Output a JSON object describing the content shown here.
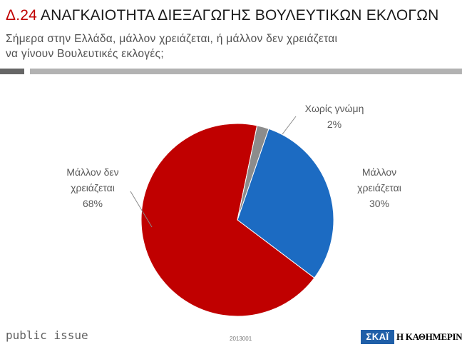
{
  "header": {
    "code": "Δ.24",
    "title": "ΑΝΑΓΚΑΙΟΤΗΤΑ ΔΙΕΞΑΓΩΓΗΣ ΒΟΥΛΕΥΤΙΚΩΝ ΕΚΛΟΓΩΝ",
    "subtitle_line1": "Σήμερα στην Ελλάδα, μάλλον χρειάζεται, ή μάλλον δεν χρειάζεται",
    "subtitle_line2": "να γίνουν Βουλευτικές εκλογές;"
  },
  "chart_data": {
    "type": "pie",
    "start_angle_deg": 19,
    "slices": [
      {
        "label_lines": [
          "Μάλλον",
          "χρειάζεται"
        ],
        "value": 30,
        "value_label": "30%",
        "color": "#1c6bc2"
      },
      {
        "label_lines": [
          "Μάλλον δεν",
          "χρειάζεται"
        ],
        "value": 68,
        "value_label": "68%",
        "color": "#c00000"
      },
      {
        "label_lines": [
          "Χωρίς γνώμη"
        ],
        "value": 2,
        "value_label": "2%",
        "color": "#8c8c8c"
      }
    ]
  },
  "footer": {
    "brand": "public issue",
    "code": "2013001",
    "logo_skai": "ΣΚΑΪ",
    "logo_kathimerini": "Η ΚΑΘΗΜΕΡΙΝΗ"
  }
}
